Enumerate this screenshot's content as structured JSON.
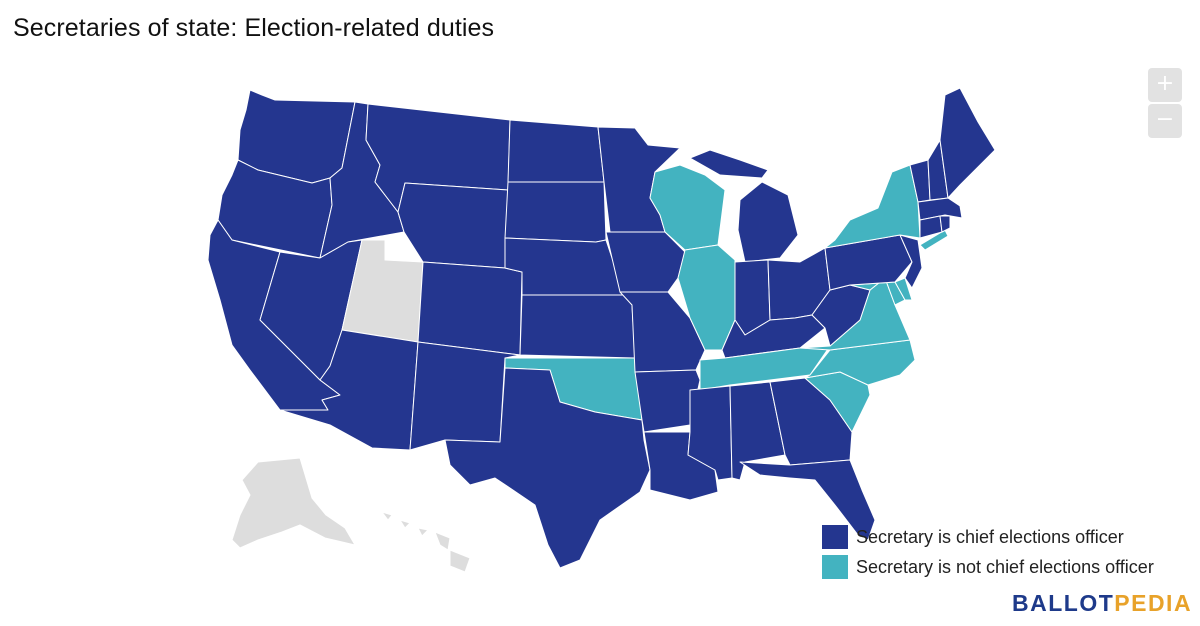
{
  "title": "Secretaries of state: Election-related duties",
  "zoom": {
    "in_label": "+",
    "out_label": "−"
  },
  "colors": {
    "chief": "#24368f",
    "not_chief": "#43b3c0",
    "no_secretary": "#dddddd",
    "border": "#ffffff"
  },
  "legend": [
    {
      "label": "Secretary is chief elections officer",
      "category": "chief"
    },
    {
      "label": "Secretary is not chief elections officer",
      "category": "not_chief"
    }
  ],
  "brand": {
    "part1": "BALLOT",
    "part2": "PEDIA"
  },
  "states": {
    "WA": "chief",
    "OR": "chief",
    "CA": "chief",
    "ID": "chief",
    "NV": "chief",
    "UT": "no_secretary",
    "AZ": "chief",
    "MT": "chief",
    "WY": "chief",
    "CO": "chief",
    "NM": "chief",
    "ND": "chief",
    "SD": "chief",
    "NE": "chief",
    "KS": "chief",
    "OK": "not_chief",
    "TX": "chief",
    "MN": "chief",
    "IA": "chief",
    "MO": "chief",
    "AR": "chief",
    "LA": "chief",
    "WI": "not_chief",
    "IL": "not_chief",
    "MI": "chief",
    "IN": "chief",
    "OH": "chief",
    "KY": "chief",
    "TN": "not_chief",
    "MS": "chief",
    "AL": "chief",
    "GA": "chief",
    "FL": "chief",
    "SC": "not_chief",
    "NC": "not_chief",
    "VA": "not_chief",
    "WV": "chief",
    "PA": "chief",
    "NY": "not_chief",
    "VT": "chief",
    "NH": "chief",
    "ME": "chief",
    "MA": "chief",
    "RI": "chief",
    "CT": "chief",
    "NJ": "chief",
    "DE": "not_chief",
    "MD": "not_chief",
    "AK": "no_secretary",
    "HI": "no_secretary"
  }
}
